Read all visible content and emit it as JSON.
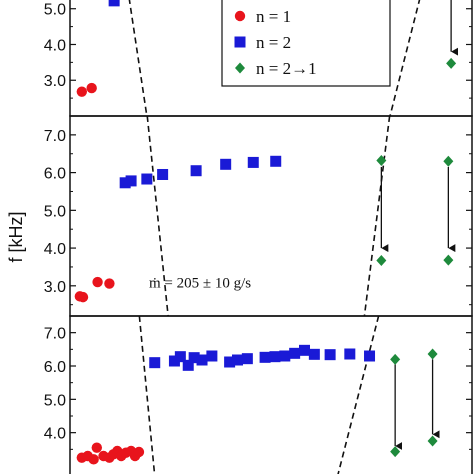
{
  "chart_data": {
    "type": "scatter",
    "ylabel": "f [kHz]",
    "legend": {
      "placement": "top-right",
      "entries": [
        {
          "label": "n = 1",
          "marker": "circle",
          "color": "#e8141c"
        },
        {
          "label": "n = 2",
          "marker": "square",
          "color": "#1a1ad6"
        },
        {
          "label": "n = 2→1",
          "marker": "diamond",
          "color": "#1e8a3c"
        }
      ]
    },
    "panels": [
      {
        "id": "top",
        "ylim": [
          2.0,
          5.3
        ],
        "yticks": [
          3.0,
          4.0,
          5.0
        ],
        "ytick_labels": [
          "3.0",
          "4.0",
          "5.0"
        ],
        "series": [
          {
            "name": "n = 1",
            "points": [
              [
                0.3,
                2.68
              ],
              [
                0.55,
                2.78
              ]
            ]
          },
          {
            "name": "n = 2",
            "points": [
              [
                1.12,
                5.22
              ]
            ]
          },
          {
            "name": "n = 2→1",
            "points": [
              [
                9.67,
                3.47
              ]
            ]
          }
        ],
        "transitions": [
          {
            "x": 9.67,
            "from": 5.3,
            "to": 3.8
          }
        ],
        "boundaries": [
          [
            [
              1.5,
              5.3
            ],
            [
              1.95,
              2.0
            ]
          ],
          [
            [
              8.88,
              5.3
            ],
            [
              8.12,
              2.0
            ]
          ]
        ]
      },
      {
        "id": "middle",
        "annotation": "ṁ = 205 ± 10 g/s",
        "ylim": [
          2.2,
          7.5
        ],
        "yticks": [
          3.0,
          4.0,
          5.0,
          6.0,
          7.0
        ],
        "ytick_labels": [
          "3.0",
          "4.0",
          "5.0",
          "6.0",
          "7.0"
        ],
        "series": [
          {
            "name": "n = 1",
            "points": [
              [
                0.25,
                2.72
              ],
              [
                0.33,
                2.7
              ],
              [
                0.7,
                3.1
              ],
              [
                1.0,
                3.06
              ]
            ]
          },
          {
            "name": "n = 2",
            "points": [
              [
                1.4,
                5.73
              ],
              [
                1.55,
                5.78
              ],
              [
                1.95,
                5.83
              ],
              [
                2.35,
                5.95
              ],
              [
                3.2,
                6.05
              ],
              [
                3.95,
                6.22
              ],
              [
                4.65,
                6.27
              ],
              [
                5.22,
                6.3
              ]
            ]
          },
          {
            "name": "n = 2→1",
            "points": [
              [
                7.9,
                6.32
              ],
              [
                7.9,
                3.67
              ],
              [
                9.6,
                6.3
              ],
              [
                9.6,
                3.68
              ]
            ]
          }
        ],
        "transitions": [
          {
            "x": 7.9,
            "from": 6.15,
            "to": 4.0
          },
          {
            "x": 9.6,
            "from": 6.15,
            "to": 4.0
          }
        ],
        "boundaries": [
          [
            [
              1.96,
              7.5
            ],
            [
              2.49,
              2.2
            ]
          ],
          [
            [
              8.11,
              7.5
            ],
            [
              7.47,
              2.2
            ]
          ]
        ]
      },
      {
        "id": "bottom",
        "ylim": [
          2.7,
          7.5
        ],
        "yticks": [
          4.0,
          5.0,
          6.0,
          7.0
        ],
        "ytick_labels": [
          "4.0",
          "5.0",
          "6.0",
          "7.0"
        ],
        "series": [
          {
            "name": "n = 1",
            "points": [
              [
                0.3,
                3.25
              ],
              [
                0.45,
                3.3
              ],
              [
                0.6,
                3.2
              ],
              [
                0.68,
                3.55
              ],
              [
                0.85,
                3.3
              ],
              [
                1.0,
                3.25
              ],
              [
                1.1,
                3.35
              ],
              [
                1.2,
                3.45
              ],
              [
                1.3,
                3.3
              ],
              [
                1.42,
                3.4
              ],
              [
                1.55,
                3.45
              ],
              [
                1.65,
                3.3
              ],
              [
                1.75,
                3.42
              ]
            ]
          },
          {
            "name": "n = 2",
            "points": [
              [
                2.15,
                6.1
              ],
              [
                2.65,
                6.15
              ],
              [
                2.8,
                6.28
              ],
              [
                3.0,
                6.02
              ],
              [
                3.15,
                6.25
              ],
              [
                3.35,
                6.18
              ],
              [
                3.6,
                6.3
              ],
              [
                4.05,
                6.12
              ],
              [
                4.25,
                6.18
              ],
              [
                4.5,
                6.22
              ],
              [
                4.95,
                6.26
              ],
              [
                5.2,
                6.28
              ],
              [
                5.45,
                6.3
              ],
              [
                5.7,
                6.38
              ],
              [
                5.95,
                6.47
              ],
              [
                6.2,
                6.35
              ],
              [
                6.6,
                6.34
              ],
              [
                7.1,
                6.36
              ],
              [
                7.6,
                6.3
              ]
            ]
          },
          {
            "name": "n = 2→1",
            "points": [
              [
                8.25,
                6.2
              ],
              [
                8.25,
                3.43
              ],
              [
                9.2,
                6.36
              ],
              [
                9.2,
                3.75
              ]
            ]
          }
        ],
        "transitions": [
          {
            "x": 8.25,
            "from": 6.05,
            "to": 3.6
          },
          {
            "x": 9.2,
            "from": 6.2,
            "to": 3.95
          }
        ],
        "boundaries": [
          [
            [
              1.76,
              7.5
            ],
            [
              2.15,
              2.7
            ]
          ],
          [
            [
              7.83,
              7.5
            ],
            [
              6.79,
              2.7
            ]
          ]
        ]
      }
    ],
    "xlim": [
      0,
      10.2
    ],
    "grid": false
  }
}
